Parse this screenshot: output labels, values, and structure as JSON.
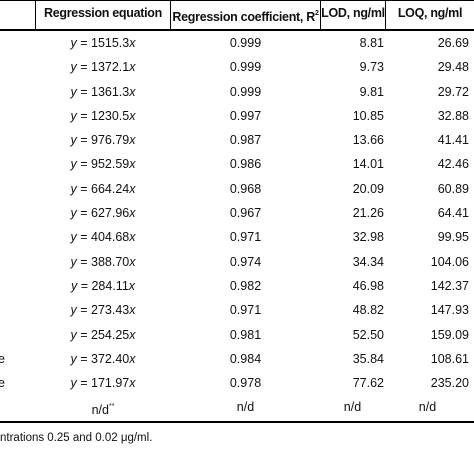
{
  "header": {
    "equation": "Regression equation",
    "coefficient": "Regression coefficient, R",
    "coefficient_sup": "2",
    "lod": "LOD, ng/ml",
    "loq": "LOQ, ng/ml"
  },
  "rows": [
    {
      "name": "",
      "var": "y",
      "eq": " = 1515.3",
      "x": "x",
      "r2": "0.999",
      "lod": "8.81",
      "loq": "26.69"
    },
    {
      "name": "",
      "var": "y",
      "eq": " = 1372.1",
      "x": "x",
      "r2": "0.999",
      "lod": "9.73",
      "loq": "29.48"
    },
    {
      "name": "",
      "var": "y",
      "eq": " = 1361.3",
      "x": "x",
      "r2": "0.999",
      "lod": "9.81",
      "loq": "29.72"
    },
    {
      "name": "",
      "var": "y",
      "eq": " = 1230.5",
      "x": "x",
      "r2": "0.997",
      "lod": "10.85",
      "loq": "32.88"
    },
    {
      "name": "",
      "var": "y",
      "eq": " = 976.79",
      "x": "x",
      "r2": "0.987",
      "lod": "13.66",
      "loq": "41.41"
    },
    {
      "name": "",
      "var": "y",
      "eq": " = 952.59",
      "x": "x",
      "r2": "0.986",
      "lod": "14.01",
      "loq": "42.46"
    },
    {
      "name": "",
      "var": "y",
      "eq": " = 664.24",
      "x": "x",
      "r2": "0.968",
      "lod": "20.09",
      "loq": "60.89"
    },
    {
      "name": "",
      "var": "y",
      "eq": " = 627.96",
      "x": "x",
      "r2": "0.967",
      "lod": "21.26",
      "loq": "64.41"
    },
    {
      "name": "",
      "var": "y",
      "eq": " = 404.68",
      "x": "x",
      "r2": "0.971",
      "lod": "32.98",
      "loq": "99.95"
    },
    {
      "name": "",
      "var": "y",
      "eq": " = 388.70",
      "x": "x",
      "r2": "0.974",
      "lod": "34.34",
      "loq": "104.06"
    },
    {
      "name": "",
      "var": "y",
      "eq": " = 284.11",
      "x": "x",
      "r2": "0.982",
      "lod": "46.98",
      "loq": "142.37"
    },
    {
      "name": "",
      "var": "y",
      "eq": " = 273.43",
      "x": "x",
      "r2": "0.971",
      "lod": "48.82",
      "loq": "147.93"
    },
    {
      "name": "",
      "var": "y",
      "eq": " = 254.25",
      "x": "x",
      "r2": "0.981",
      "lod": "52.50",
      "loq": "159.09"
    },
    {
      "name": "e",
      "var": "y",
      "eq": " = 372.40",
      "x": "x",
      "r2": "0.984",
      "lod": "35.84",
      "loq": "108.61"
    },
    {
      "name": "e",
      "var": "y",
      "eq": " = 171.97",
      "x": "x",
      "r2": "0.978",
      "lod": "77.62",
      "loq": "235.20"
    }
  ],
  "last_row": {
    "eq": "n/d",
    "eq_sup": "**",
    "r2": "n/d",
    "lod": "n/d",
    "loq": "n/d"
  },
  "footnote": "ntrations 0.25 and 0.02 μg/ml."
}
